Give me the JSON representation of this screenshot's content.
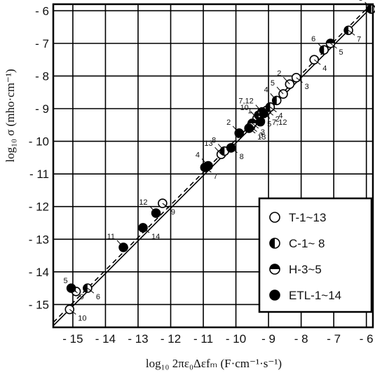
{
  "chart_data": {
    "type": "scatter",
    "xlabel": "log₁₀ 2πε₀Δεfₘ (F·cm⁻¹·s⁻¹)",
    "ylabel": "log₁₀ σ (mho·cm⁻¹)",
    "xlim": [
      -15.6,
      -5.8
    ],
    "ylim": [
      -15.7,
      -5.8
    ],
    "x_ticks": [
      -15,
      -14,
      -13,
      -12,
      -11,
      -10,
      -9,
      -8,
      -7,
      -6
    ],
    "y_ticks": [
      -6,
      -7,
      -8,
      -9,
      -10,
      -11,
      -12,
      -13,
      -14,
      -15
    ],
    "grid": true,
    "lines": [
      {
        "style": "solid",
        "points": [
          [
            -15.6,
            -15.65
          ],
          [
            -5.8,
            -5.85
          ]
        ]
      },
      {
        "style": "dashed",
        "points": [
          [
            -15.6,
            -15.55
          ],
          [
            -5.8,
            -5.75
          ]
        ]
      }
    ],
    "legend": {
      "position": "bottom-right",
      "entries": [
        {
          "marker": "open",
          "label": "T-1~13"
        },
        {
          "marker": "half-left",
          "label": "C-1~ 8"
        },
        {
          "marker": "half-top",
          "label": "H-3~5"
        },
        {
          "marker": "filled",
          "label": "ETL-1~14"
        }
      ]
    },
    "series": [
      {
        "marker": "open",
        "points": [
          {
            "x": -15.1,
            "y": -15.15,
            "label": "10"
          },
          {
            "x": -14.9,
            "y": -14.6,
            "label": "5"
          },
          {
            "x": -12.25,
            "y": -11.9,
            "label": "9"
          },
          {
            "x": -10.45,
            "y": -10.4,
            "label": "13"
          },
          {
            "x": -9.55,
            "y": -9.55,
            "label": "3"
          },
          {
            "x": -9.35,
            "y": -9.3,
            "label": "10"
          },
          {
            "x": -9.05,
            "y": -9.05,
            "label": "2"
          },
          {
            "x": -8.35,
            "y": -8.25,
            "label": "2"
          },
          {
            "x": -8.15,
            "y": -8.05,
            "label": "3"
          },
          {
            "x": -8.55,
            "y": -8.55,
            "label": "5"
          },
          {
            "x": -7.6,
            "y": -7.5,
            "label": "4"
          }
        ]
      },
      {
        "marker": "half-left",
        "points": [
          {
            "x": -14.55,
            "y": -14.5,
            "label": "6"
          },
          {
            "x": -10.35,
            "y": -10.3,
            "label": "8"
          },
          {
            "x": -9.3,
            "y": -9.2,
            "label": "5"
          },
          {
            "x": -8.75,
            "y": -8.75,
            "label": "4"
          },
          {
            "x": -8.95,
            "y": -8.95,
            "label": "4"
          },
          {
            "x": -7.3,
            "y": -7.2,
            "label": "6"
          },
          {
            "x": -6.55,
            "y": -6.6,
            "label": "7"
          },
          {
            "x": -5.85,
            "y": -5.95,
            "label": "8"
          }
        ]
      },
      {
        "marker": "half-top",
        "points": [
          {
            "x": -9.5,
            "y": -9.45,
            "label": "3"
          },
          {
            "x": -9.2,
            "y": -9.1,
            "label": "7,12"
          },
          {
            "x": -7.1,
            "y": -7.0,
            "label": "5"
          }
        ]
      },
      {
        "marker": "filled",
        "points": [
          {
            "x": -15.05,
            "y": -14.5,
            "label": "9"
          },
          {
            "x": -13.45,
            "y": -13.25,
            "label": "11"
          },
          {
            "x": -12.85,
            "y": -12.65,
            "label": "14"
          },
          {
            "x": -12.45,
            "y": -12.2,
            "label": "12"
          },
          {
            "x": -10.95,
            "y": -10.8,
            "label": "7"
          },
          {
            "x": -10.85,
            "y": -10.75,
            "label": "4"
          },
          {
            "x": -10.15,
            "y": -10.2,
            "label": "8"
          },
          {
            "x": -9.9,
            "y": -9.75,
            "label": "2"
          },
          {
            "x": -9.6,
            "y": -9.6,
            "label": "13"
          },
          {
            "x": -9.25,
            "y": -9.4,
            "label": "1"
          },
          {
            "x": -9.15,
            "y": -9.15,
            "label": "7,12"
          }
        ]
      }
    ]
  }
}
